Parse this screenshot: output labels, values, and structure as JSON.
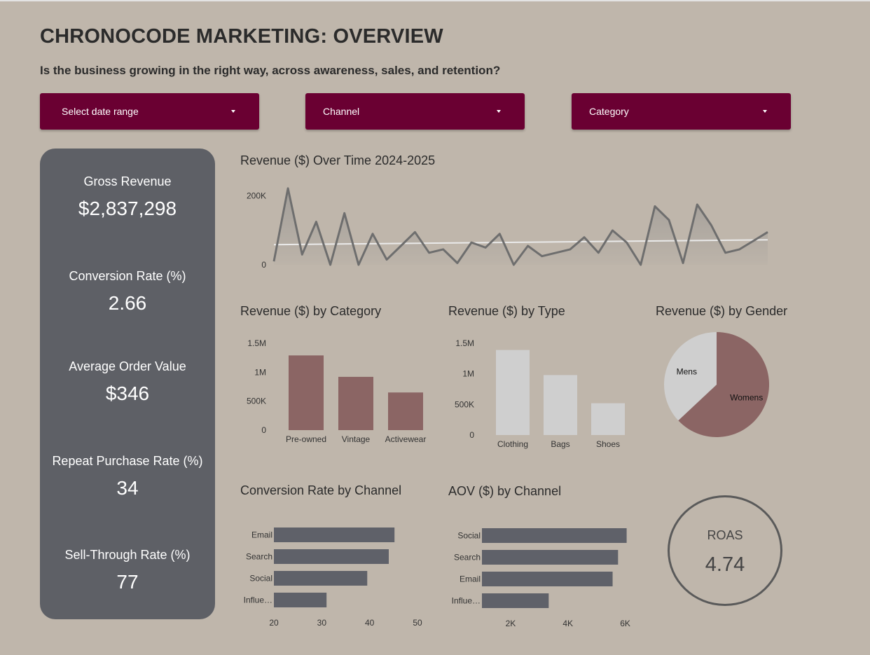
{
  "dashboard": {
    "title": "CHRONOCODE MARKETING: OVERVIEW",
    "subtitle": "Is the business growing in the right way, across awareness, sales, and retention?"
  },
  "filters": {
    "date_range": "Select date range",
    "channel": "Channel",
    "category": "Category"
  },
  "kpis": [
    {
      "label": "Gross Revenue",
      "value": "$2,837,298"
    },
    {
      "label": "Conversion Rate (%)",
      "value": "2.66"
    },
    {
      "label": "Average Order Value",
      "value": "$346"
    },
    {
      "label": "Repeat Purchase Rate (%)",
      "value": "34"
    },
    {
      "label": "Sell-Through Rate (%)",
      "value": "77"
    }
  ],
  "roas": {
    "label": "ROAS",
    "value": "4.74"
  },
  "colors": {
    "background": "#bfb6ab",
    "filter_button": "#6a0032",
    "kpi_panel": "#5e6066",
    "category_bars": "#8b6564",
    "type_bars": "#cfcfcf",
    "channel_bars": "#5f6169",
    "line": "#6e6e6e",
    "trend": "#eaeaea"
  },
  "chart_data": [
    {
      "type": "line",
      "title": "Revenue ($) Over Time 2024-2025",
      "ylim": [
        0,
        230000
      ],
      "yticks": [
        0,
        200000
      ],
      "ytick_labels": [
        "0",
        "200K"
      ],
      "trendline": true,
      "series": [
        {
          "values": [
            10000,
            222000,
            30000,
            125000,
            0,
            150000,
            0,
            90000,
            15000,
            55000,
            95000,
            35000,
            45000,
            5000,
            65000,
            50000,
            90000,
            0,
            55000,
            25000,
            35000,
            45000,
            80000,
            35000,
            100000,
            65000,
            0,
            170000,
            130000,
            5000,
            175000,
            115000,
            35000,
            45000,
            70000,
            95000
          ]
        }
      ]
    },
    {
      "type": "bar",
      "title": "Revenue ($) by Category",
      "categories": [
        "Pre-owned",
        "Vintage",
        "Activewear"
      ],
      "values": [
        1290000,
        920000,
        650000
      ],
      "ylim": [
        0,
        1500000
      ],
      "yticks": [
        0,
        500000,
        1000000,
        1500000
      ],
      "ytick_labels": [
        "0",
        "500K",
        "1M",
        "1.5M"
      ]
    },
    {
      "type": "bar",
      "title": "Revenue ($) by Type",
      "categories": [
        "Clothing",
        "Bags",
        "Shoes"
      ],
      "values": [
        1390000,
        980000,
        520000
      ],
      "ylim": [
        0,
        1500000
      ],
      "yticks": [
        0,
        500000,
        1000000,
        1500000
      ],
      "ytick_labels": [
        "0",
        "500K",
        "1M",
        "1.5M"
      ]
    },
    {
      "type": "pie",
      "title": "Revenue ($) by Gender",
      "categories": [
        "Mens",
        "Womens"
      ],
      "values": [
        37,
        63
      ],
      "colors": [
        "#cfcfcf",
        "#8b6564"
      ]
    },
    {
      "type": "bar",
      "orientation": "horizontal",
      "title": "Conversion Rate by Channel",
      "categories": [
        "Email",
        "Search",
        "Social",
        "Influe…"
      ],
      "values": [
        45.2,
        44.0,
        39.5,
        31.0
      ],
      "xlim": [
        20,
        50
      ],
      "xticks": [
        20,
        30,
        40,
        50
      ]
    },
    {
      "type": "bar",
      "orientation": "horizontal",
      "title": "AOV ($) by Channel",
      "categories": [
        "Social",
        "Search",
        "Email",
        "Influe…"
      ],
      "values": [
        6050,
        5750,
        5560,
        3330
      ],
      "xlim": [
        1000,
        6500
      ],
      "xticks": [
        2000,
        4000,
        6000
      ],
      "xtick_labels": [
        "2K",
        "4K",
        "6K"
      ]
    }
  ]
}
